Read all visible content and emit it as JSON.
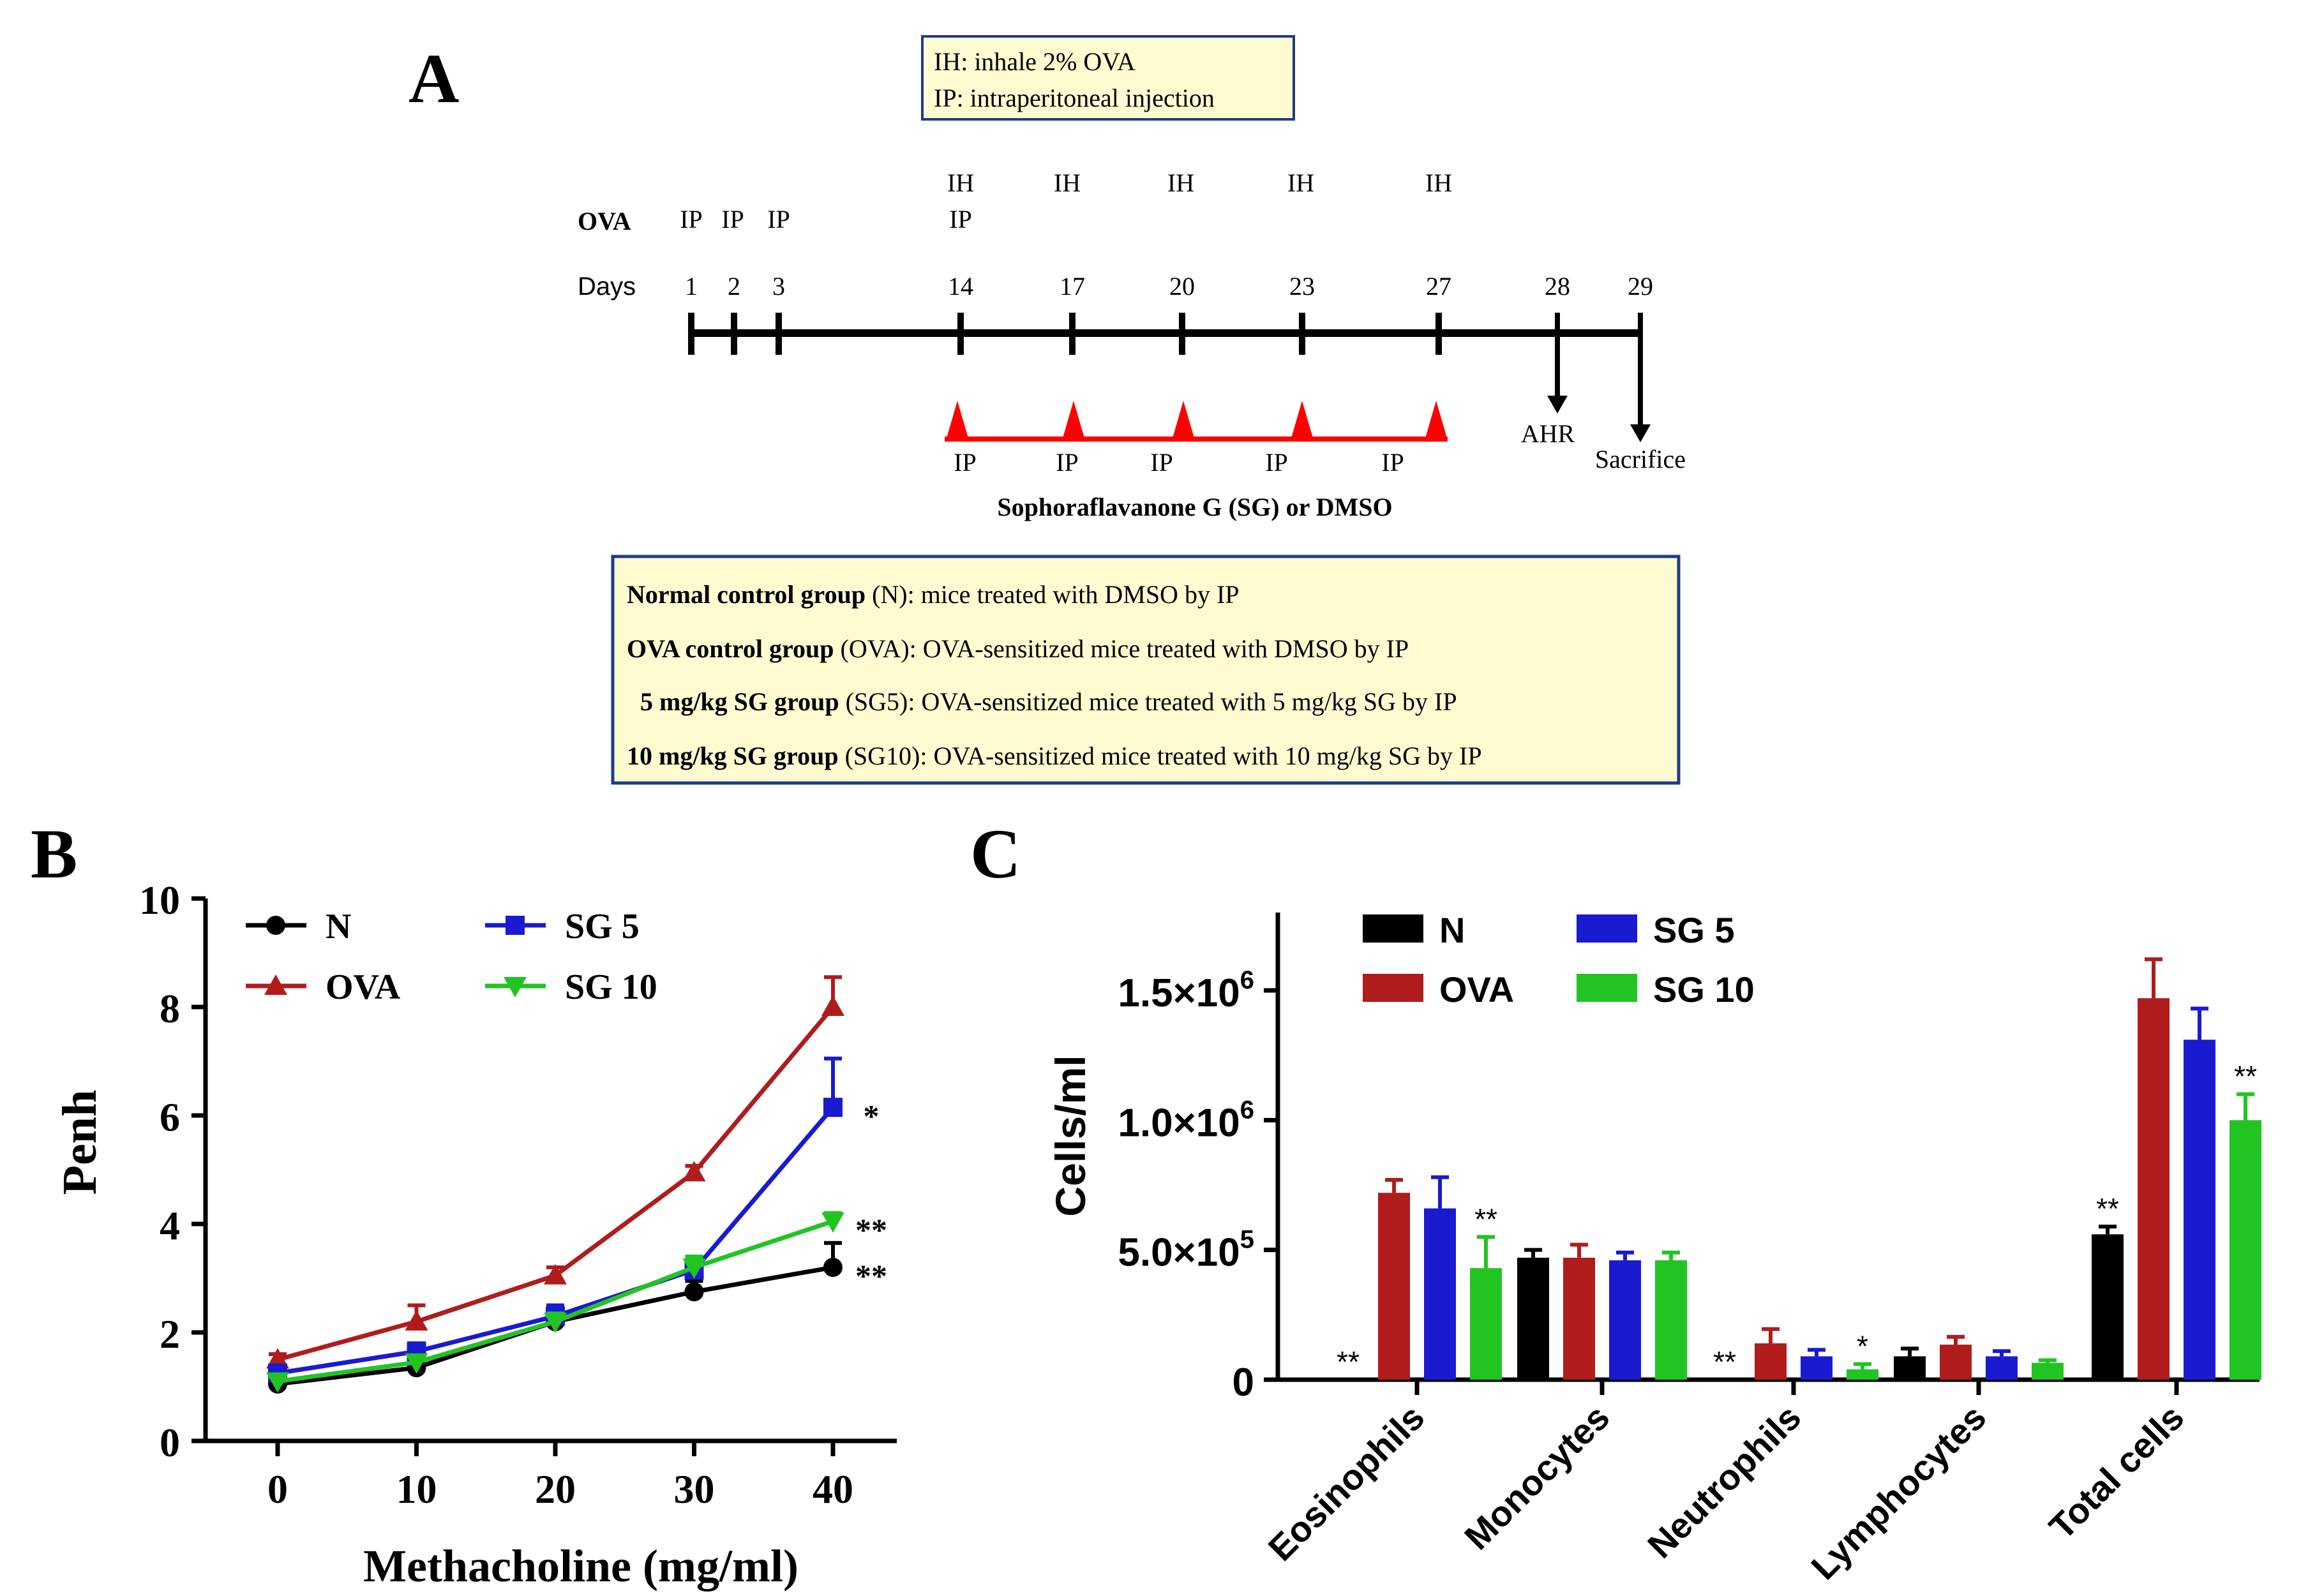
{
  "panels": {
    "a": "A",
    "b": "B",
    "c": "C"
  },
  "legend_box": {
    "line1": "IH: inhale 2% OVA",
    "line2": "IP: intraperitoneal injection"
  },
  "timeline": {
    "ova_label": "OVA",
    "days_label": "Days",
    "ih_label": "IH",
    "ip_label": "IP",
    "day_ticks": [
      {
        "day": "1",
        "ih": "",
        "ip": "IP"
      },
      {
        "day": "2",
        "ih": "",
        "ip": "IP"
      },
      {
        "day": "3",
        "ih": "",
        "ip": "IP"
      },
      {
        "day": "14",
        "ih": "IH",
        "ip": "IP"
      },
      {
        "day": "17",
        "ih": "IH",
        "ip": ""
      },
      {
        "day": "20",
        "ih": "IH",
        "ip": ""
      },
      {
        "day": "23",
        "ih": "IH",
        "ip": ""
      },
      {
        "day": "27",
        "ih": "IH",
        "ip": ""
      },
      {
        "day": "28",
        "ih": "",
        "ip": ""
      },
      {
        "day": "29",
        "ih": "",
        "ip": ""
      }
    ],
    "ahr_label": "AHR",
    "sacrifice_label": "Sacrifice",
    "treatment_ip_labels": [
      "IP",
      "IP",
      "IP",
      "IP",
      "IP"
    ],
    "treatment_label": "Sophoraflavanone G (SG) or DMSO"
  },
  "groups_box": [
    {
      "bold": "Normal control group",
      "rest": " (N): mice treated with DMSO by IP"
    },
    {
      "bold": "OVA control group",
      "rest": " (OVA): OVA-sensitized mice  treated with DMSO by IP"
    },
    {
      "bold": "5 mg/kg SG group",
      "rest": " (SG5): OVA-sensitized mice treated with 5 mg/kg SG by IP"
    },
    {
      "bold": "10 mg/kg SG group",
      "rest": " (SG10): OVA-sensitized mice treated with 10 mg/kg SG by IP"
    }
  ],
  "colors": {
    "N": "#000000",
    "OVA": "#b01c1c",
    "SG5": "#1a1ad0",
    "SG10": "#22c422",
    "red_marker": "#ff0000",
    "box_fill": "#fffbd0",
    "box_border": "#1f3c88"
  },
  "chart_data": [
    {
      "type": "line",
      "panel": "B",
      "xlabel": "Methacholine (mg/ml)",
      "ylabel": "Penh",
      "x": [
        0,
        10,
        20,
        30,
        40
      ],
      "xticks": [
        "0",
        "10",
        "20",
        "30",
        "40"
      ],
      "yticks": [
        "0",
        "2",
        "4",
        "6",
        "8",
        "10"
      ],
      "ylim": [
        0,
        10
      ],
      "legend_position": "top-left",
      "series": [
        {
          "name": "N",
          "marker": "circle",
          "values": [
            1.05,
            1.35,
            2.2,
            2.75,
            3.2
          ],
          "errors": [
            0.1,
            0.12,
            0.3,
            0.2,
            0.45
          ],
          "sig": "**"
        },
        {
          "name": "OVA",
          "marker": "triangle-up",
          "values": [
            1.5,
            2.2,
            3.05,
            4.95,
            8.0
          ],
          "errors": [
            0.1,
            0.3,
            0.15,
            0.12,
            0.55
          ],
          "sig": ""
        },
        {
          "name": "SG 5",
          "marker": "square",
          "values": [
            1.25,
            1.65,
            2.3,
            3.15,
            6.15
          ],
          "errors": [
            0.1,
            0.15,
            0.2,
            0.25,
            0.9
          ],
          "sig": "*"
        },
        {
          "name": "SG 10",
          "marker": "triangle-down",
          "values": [
            1.1,
            1.45,
            2.2,
            3.2,
            4.05
          ],
          "errors": [
            0.08,
            0.1,
            0.15,
            0.2,
            0.15
          ],
          "sig": "**"
        }
      ]
    },
    {
      "type": "bar",
      "panel": "C",
      "ylabel": "Cells/ml",
      "categories": [
        "Eosinophils",
        "Monocytes",
        "Neutrophils",
        "Lymphocytes",
        "Total cells"
      ],
      "ylim": [
        0,
        1800000
      ],
      "yticks": [
        {
          "value": 0,
          "mant": "0",
          "exp": ""
        },
        {
          "value": 500000,
          "mant": "5.0×10",
          "exp": "5"
        },
        {
          "value": 1000000,
          "mant": "1.0×10",
          "exp": "6"
        },
        {
          "value": 1500000,
          "mant": "1.5×10",
          "exp": "6"
        }
      ],
      "legend_position": "top-left",
      "series": [
        {
          "name": "N",
          "values": [
            0,
            470000,
            0,
            90000,
            560000
          ],
          "errors": [
            0,
            30000,
            0,
            30000,
            30000
          ],
          "sig": [
            "**",
            "",
            "**",
            "",
            "**"
          ]
        },
        {
          "name": "OVA",
          "values": [
            720000,
            470000,
            140000,
            135000,
            1470000
          ],
          "errors": [
            50000,
            50000,
            55000,
            30000,
            150000
          ],
          "sig": [
            "",
            "",
            "",
            "",
            ""
          ]
        },
        {
          "name": "SG 5",
          "values": [
            660000,
            460000,
            90000,
            90000,
            1310000
          ],
          "errors": [
            120000,
            30000,
            25000,
            20000,
            120000
          ],
          "sig": [
            "",
            "",
            "",
            "",
            ""
          ]
        },
        {
          "name": "SG 10",
          "values": [
            430000,
            460000,
            40000,
            65000,
            1000000
          ],
          "errors": [
            120000,
            30000,
            20000,
            10000,
            100000
          ],
          "sig": [
            "**",
            "",
            "*",
            "",
            "**"
          ]
        }
      ]
    }
  ]
}
